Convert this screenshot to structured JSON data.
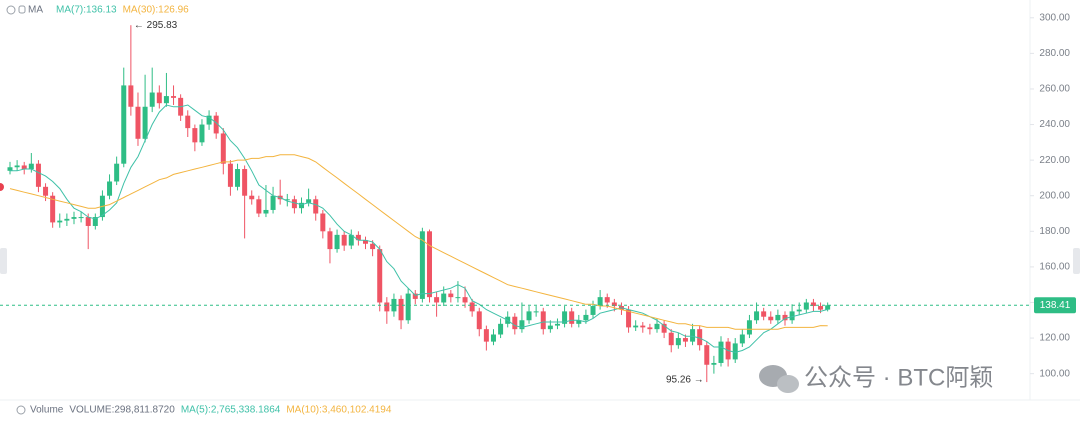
{
  "chart_data": {
    "type": "candlestick",
    "legend_title": "MA",
    "up_color": "#2ebd85",
    "down_color": "#ef5464",
    "open": [
      214,
      216,
      217,
      215,
      218,
      205,
      200,
      185,
      186,
      187,
      188,
      188,
      183,
      188,
      200,
      208,
      218,
      262,
      250,
      232,
      250,
      258,
      252,
      256,
      255,
      245,
      238,
      230,
      240,
      245,
      235,
      218,
      205,
      215,
      200,
      198,
      190,
      192,
      200,
      198,
      198,
      193,
      196,
      198,
      190,
      180,
      170,
      178,
      172,
      178,
      175,
      173,
      170,
      140,
      135,
      142,
      130,
      145,
      142,
      180,
      143,
      140,
      145,
      143,
      143,
      140,
      135,
      125,
      118,
      122,
      128,
      132,
      125,
      130,
      135,
      135,
      125,
      127,
      128,
      135,
      128,
      130,
      133,
      138,
      143,
      140,
      138,
      136,
      126,
      127,
      126,
      125,
      128,
      123,
      116,
      120,
      118,
      125,
      116,
      105,
      106,
      118,
      108,
      117,
      122,
      130,
      135,
      132,
      130,
      133,
      130,
      135,
      136,
      140,
      138,
      136
    ],
    "high": [
      219,
      220,
      219,
      224,
      220,
      207,
      202,
      190,
      190,
      191,
      191,
      190,
      190,
      203,
      212,
      222,
      272,
      295.83,
      258,
      268,
      272,
      262,
      269,
      262,
      257,
      248,
      240,
      243,
      248,
      247,
      238,
      220,
      218,
      217,
      203,
      200,
      206,
      205,
      209,
      201,
      200,
      199,
      204,
      200,
      192,
      182,
      181,
      180,
      181,
      180,
      177,
      175,
      172,
      143,
      145,
      144,
      148,
      147,
      182,
      181,
      146,
      149,
      147,
      152,
      149,
      142,
      137,
      127,
      125,
      131,
      135,
      134,
      140,
      138,
      138,
      137,
      130,
      131,
      138,
      137,
      133,
      136,
      141,
      147,
      145,
      142,
      140,
      138,
      130,
      129,
      128,
      131,
      130,
      125,
      123,
      122,
      128,
      127,
      118,
      110,
      121,
      120,
      120,
      125,
      133,
      140,
      137,
      135,
      136,
      135,
      139,
      140,
      142,
      142,
      140,
      140
    ],
    "low": [
      212,
      214,
      212,
      213,
      202,
      197,
      182,
      182,
      183,
      184,
      185,
      170,
      181,
      186,
      198,
      206,
      216,
      245,
      228,
      230,
      247,
      249,
      250,
      251,
      242,
      233,
      225,
      228,
      237,
      232,
      212,
      200,
      203,
      176,
      195,
      188,
      188,
      190,
      195,
      194,
      190,
      190,
      194,
      186,
      176,
      162,
      168,
      169,
      170,
      172,
      170,
      166,
      135,
      128,
      132,
      125,
      128,
      139,
      140,
      140,
      132,
      138,
      140,
      140,
      137,
      132,
      121,
      113,
      116,
      120,
      126,
      122,
      123,
      128,
      132,
      122,
      123,
      125,
      126,
      126,
      126,
      128,
      131,
      136,
      137,
      135,
      133,
      123,
      124,
      123,
      122,
      123,
      120,
      112,
      114,
      115,
      116,
      113,
      95.26,
      100,
      104,
      104,
      106,
      115,
      120,
      128,
      130,
      128,
      128,
      127,
      128,
      133,
      134,
      135,
      134,
      135
    ],
    "close": [
      216,
      217,
      215,
      218,
      205,
      200,
      185,
      186,
      187,
      188,
      188,
      183,
      188,
      200,
      208,
      218,
      262,
      250,
      232,
      250,
      258,
      252,
      256,
      255,
      245,
      238,
      230,
      240,
      245,
      235,
      218,
      205,
      215,
      200,
      198,
      190,
      192,
      200,
      198,
      198,
      193,
      196,
      198,
      190,
      180,
      170,
      178,
      172,
      178,
      175,
      173,
      170,
      140,
      135,
      142,
      130,
      145,
      142,
      180,
      143,
      140,
      145,
      143,
      143,
      140,
      135,
      125,
      118,
      122,
      128,
      132,
      125,
      130,
      135,
      135,
      125,
      127,
      128,
      135,
      128,
      130,
      133,
      138,
      143,
      140,
      138,
      136,
      126,
      127,
      126,
      125,
      128,
      123,
      116,
      120,
      118,
      125,
      116,
      105,
      106,
      118,
      108,
      117,
      122,
      130,
      135,
      132,
      130,
      133,
      130,
      135,
      136,
      140,
      138,
      136,
      138.41
    ],
    "series": [
      {
        "name": "MA(7):136.13",
        "color": "#3fc1a8",
        "values": [
          214,
          214,
          215,
          215,
          213,
          211,
          208,
          204,
          198,
          193,
          191,
          188,
          187,
          189,
          192,
          196,
          207,
          216,
          222,
          231,
          240,
          247,
          251,
          250,
          250,
          251,
          248,
          245,
          244,
          241,
          237,
          231,
          227,
          221,
          214,
          206,
          203,
          200,
          199,
          197,
          196,
          195,
          196,
          195,
          193,
          189,
          184,
          180,
          178,
          175,
          175,
          174,
          170,
          163,
          159,
          152,
          148,
          144,
          145,
          145,
          146,
          147,
          148,
          150,
          148,
          141,
          139,
          136,
          134,
          132,
          130,
          127,
          126,
          127,
          128,
          129,
          129,
          129,
          129,
          130,
          130,
          129,
          131,
          134,
          135,
          136,
          137,
          136,
          135,
          134,
          132,
          130,
          127,
          124,
          123,
          121,
          121,
          120,
          118,
          115,
          115,
          113,
          112,
          113,
          115,
          119,
          123,
          125,
          128,
          131,
          132,
          133,
          134,
          135,
          135,
          136.13
        ]
      },
      {
        "name": "MA(30):126.96",
        "color": "#f3b43f",
        "values": [
          204,
          203,
          202,
          201,
          200,
          199,
          198,
          197,
          196,
          195,
          194,
          193,
          193,
          194,
          195,
          197,
          199,
          201,
          203,
          205,
          207,
          209,
          210,
          212,
          213,
          214,
          215,
          216,
          217,
          218,
          219,
          219,
          220,
          220,
          221,
          221,
          222,
          222,
          223,
          223,
          223,
          222,
          221,
          219,
          216,
          213,
          210,
          207,
          204,
          201,
          198,
          195,
          192,
          189,
          186,
          183,
          180,
          177,
          175,
          172,
          170,
          168,
          166,
          164,
          162,
          160,
          158,
          156,
          154,
          152,
          150,
          149,
          148,
          147,
          146,
          145,
          144,
          143,
          142,
          141,
          140,
          139,
          139,
          138,
          138,
          137,
          136,
          135,
          134,
          133,
          132,
          131,
          130,
          129,
          128,
          128,
          127,
          127,
          126,
          126,
          126,
          126,
          125,
          125,
          125,
          125,
          125,
          125,
          125,
          126,
          126,
          126,
          126,
          126,
          127,
          126.96
        ]
      }
    ],
    "ylim": [
      88,
      310
    ],
    "yticks": [
      {
        "value": 100,
        "label": "100.00"
      },
      {
        "value": 120,
        "label": "120.00"
      },
      {
        "value": 140,
        "label": "140.00"
      },
      {
        "value": 160,
        "label": "160.00"
      },
      {
        "value": 180,
        "label": "180.00"
      },
      {
        "value": 200,
        "label": "200.00"
      },
      {
        "value": 220,
        "label": "220.00"
      },
      {
        "value": 240,
        "label": "240.00"
      },
      {
        "value": 260,
        "label": "260.00"
      },
      {
        "value": 280,
        "label": "280.00"
      },
      {
        "value": 300,
        "label": "300.00"
      }
    ],
    "last_price": {
      "value": 138.41,
      "label": "138.41"
    },
    "high_annotation": {
      "value": 295.83,
      "label": "← 295.83"
    },
    "low_annotation": {
      "value": 95.26,
      "label": "95.26 →"
    },
    "volume_legend": [
      "Volume",
      "VOLUME:298,811.8720",
      "MA(5):2,765,338.1864",
      "MA(10):3,460,102.4194"
    ],
    "watermark": "公众号 · BTC阿颖"
  }
}
